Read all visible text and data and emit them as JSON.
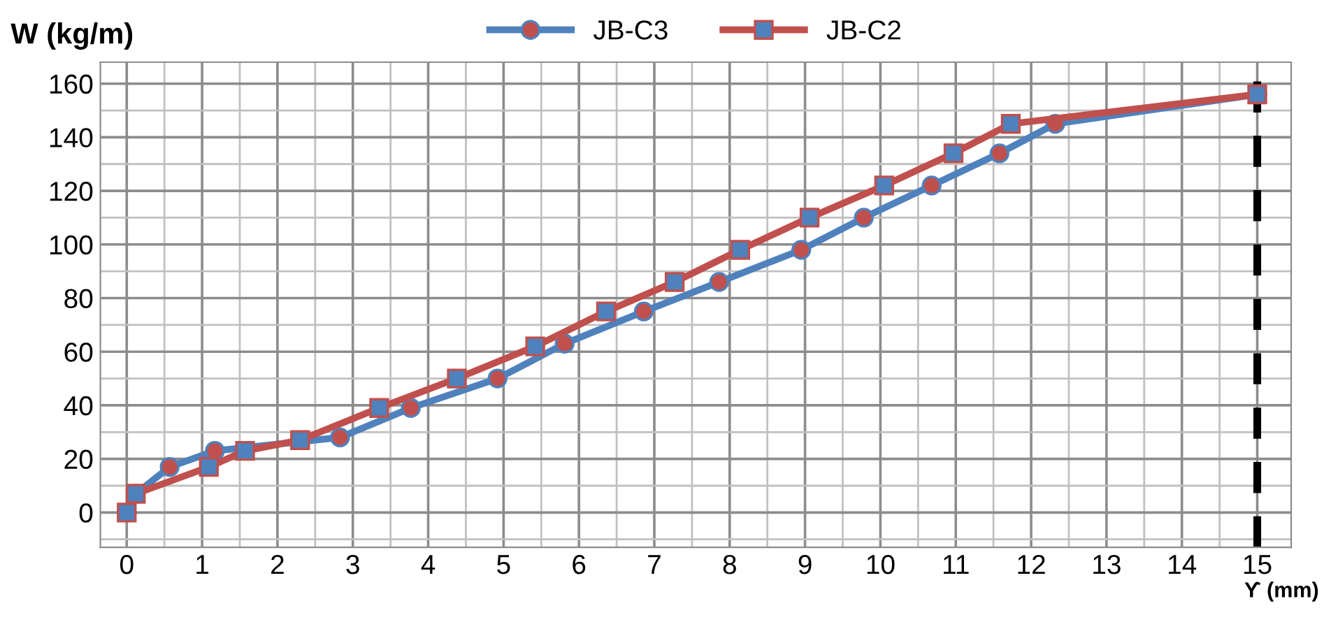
{
  "chart_data": {
    "type": "line",
    "xlabel": "ϒ (mm)",
    "ylabel": "W (kg/m)",
    "xlim": [
      -0.35,
      15.45
    ],
    "ylim": [
      -13,
      168
    ],
    "xticks": [
      0,
      1,
      2,
      3,
      4,
      5,
      6,
      7,
      8,
      9,
      10,
      11,
      12,
      13,
      14,
      15
    ],
    "yticks": [
      0,
      20,
      40,
      60,
      80,
      100,
      120,
      140,
      160
    ],
    "grid": true,
    "legend": "top",
    "line_style": "solid",
    "series": [
      {
        "name": "JB-C3",
        "color": "#4f81bd",
        "marker": "circle",
        "x": [
          0,
          0.12,
          0.57,
          1.17,
          2.83,
          3.77,
          4.92,
          5.81,
          6.86,
          7.86,
          8.95,
          9.78,
          10.68,
          11.58,
          12.32,
          15
        ],
        "values": [
          0,
          7,
          17,
          23,
          28,
          39,
          50,
          63,
          75,
          86,
          98,
          110,
          122,
          134,
          145,
          156
        ]
      },
      {
        "name": "JB-C2",
        "color": "#c0504d",
        "marker": "square",
        "x": [
          0,
          0.12,
          1.09,
          1.57,
          2.3,
          3.35,
          4.38,
          5.42,
          6.36,
          7.27,
          8.14,
          9.06,
          10.05,
          10.97,
          11.73,
          15
        ],
        "values": [
          0,
          7,
          17,
          23,
          27,
          39,
          50,
          62,
          75,
          86,
          98,
          110,
          122,
          134,
          145,
          156
        ]
      }
    ],
    "ref_lines": [
      {
        "axis": "x",
        "value": 15,
        "color": "#000000",
        "line_style": "dashed"
      }
    ]
  }
}
